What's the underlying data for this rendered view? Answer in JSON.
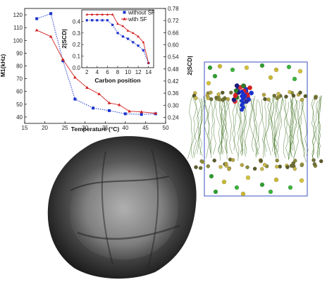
{
  "chart_data": [
    {
      "id": "main",
      "type": "line",
      "xlabel": "Temperature (°C)",
      "ylabel_left": "M1(kHz)",
      "ylabel_right": "2|SCD|",
      "xlim": [
        15,
        50
      ],
      "ylim_left": [
        35,
        125
      ],
      "ylim_right": [
        0.21,
        0.78
      ],
      "xticks": [
        15,
        20,
        25,
        30,
        35,
        40,
        45,
        50
      ],
      "yticks_left": [
        40,
        50,
        60,
        70,
        80,
        90,
        100,
        110,
        120
      ],
      "yticks_right": [
        0.24,
        0.3,
        0.36,
        0.42,
        0.48,
        0.54,
        0.6,
        0.66,
        0.72,
        0.78
      ],
      "series": [
        {
          "name": "without SF",
          "color": "#1a33cc",
          "line": "dotted",
          "marker": "square",
          "x": [
            18,
            21.5,
            24.5,
            27.5,
            32,
            36,
            40,
            44,
            47.5
          ],
          "y": [
            117,
            121,
            84,
            54,
            47,
            45,
            42.5,
            42,
            42.5
          ]
        },
        {
          "name": "with SF",
          "color": "#d42020",
          "line": "solid",
          "marker": "triangle",
          "x": [
            18,
            21.5,
            24.5,
            27.5,
            30.5,
            33.5,
            36,
            38.5,
            41,
            44,
            47.5
          ],
          "y": [
            108,
            103,
            85,
            71,
            63,
            58,
            51,
            49.5,
            44.5,
            44,
            43
          ]
        }
      ]
    },
    {
      "id": "inset",
      "type": "line",
      "xlabel": "Carbon position",
      "ylabel": "2|SCD|",
      "xlim": [
        1,
        15
      ],
      "ylim": [
        0,
        0.5
      ],
      "xticks": [
        2,
        4,
        6,
        8,
        10,
        12,
        14
      ],
      "yticks": [
        0.0,
        0.1,
        0.2,
        0.3,
        0.4
      ],
      "legend_position": "top-right",
      "series": [
        {
          "name": "without SF",
          "color": "#1a33cc",
          "line": "dotted",
          "marker": "square",
          "x": [
            2,
            3,
            4,
            5,
            6,
            7,
            8,
            9,
            10,
            11,
            12,
            13,
            14
          ],
          "y": [
            0.41,
            0.41,
            0.41,
            0.41,
            0.41,
            0.37,
            0.3,
            0.27,
            0.25,
            0.22,
            0.19,
            0.15,
            0.04
          ]
        },
        {
          "name": "with SF",
          "color": "#d42020",
          "line": "solid",
          "marker": "triangle",
          "x": [
            2,
            3,
            4,
            5,
            6,
            7,
            8,
            9,
            10,
            11,
            12,
            13,
            14
          ],
          "y": [
            0.46,
            0.46,
            0.46,
            0.46,
            0.46,
            0.46,
            0.38,
            0.36,
            0.32,
            0.3,
            0.27,
            0.22,
            0.04
          ]
        }
      ]
    }
  ],
  "legend": {
    "without_label": "without SF",
    "with_label": "with SF"
  },
  "images": {
    "simulation_box_color": "#3b4fc0",
    "membrane_color": "#4a7a2e",
    "micrograph_color": "#2a2a2a"
  }
}
